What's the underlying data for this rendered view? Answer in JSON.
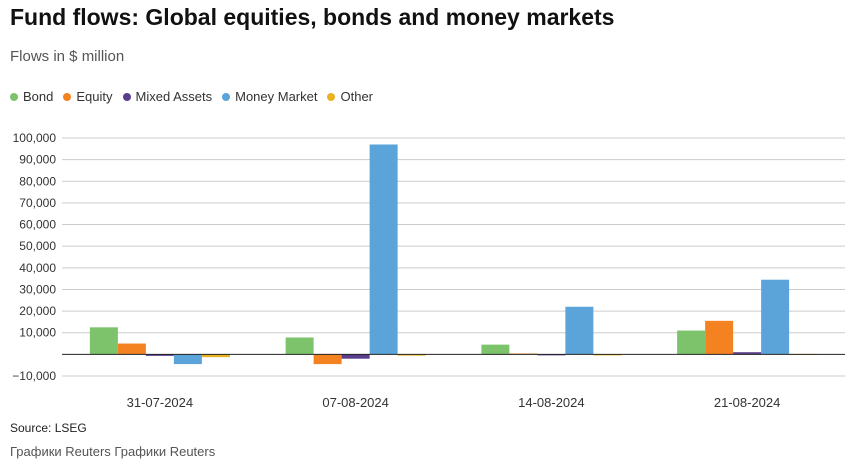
{
  "header": {
    "title": "Fund flows: Global equities, bonds and money markets",
    "subtitle": "Flows in $ million"
  },
  "footer": {
    "source": "Source: LSEG",
    "credit": "Графики Reuters Графики Reuters"
  },
  "chart_data": {
    "type": "bar",
    "title": "Fund flows: Global equities, bonds and money markets",
    "subtitle": "Flows in $ million",
    "xlabel": "",
    "ylabel": "",
    "categories": [
      "31-07-2024",
      "07-08-2024",
      "14-08-2024",
      "21-08-2024"
    ],
    "series": [
      {
        "name": "Bond",
        "color": "#7cc36b",
        "values": [
          12500,
          7800,
          4500,
          11000
        ]
      },
      {
        "name": "Equity",
        "color": "#f58220",
        "values": [
          5000,
          -4500,
          400,
          15500
        ]
      },
      {
        "name": "Mixed Assets",
        "color": "#5a3e8e",
        "values": [
          -700,
          -2000,
          -300,
          1000
        ]
      },
      {
        "name": "Money Market",
        "color": "#5aa4da",
        "values": [
          -4500,
          97000,
          22000,
          34500
        ]
      },
      {
        "name": "Other",
        "color": "#e8b222",
        "values": [
          -1300,
          -600,
          -500,
          200
        ]
      }
    ],
    "ylim": [
      -10000,
      100000
    ],
    "yticks": [
      100000,
      90000,
      80000,
      70000,
      60000,
      50000,
      40000,
      30000,
      20000,
      10000,
      -10000
    ],
    "ytick_labels": [
      "100,000",
      "90,000",
      "80,000",
      "70,000",
      "60,000",
      "50,000",
      "40,000",
      "30,000",
      "20,000",
      "10,000",
      "−10,000"
    ],
    "grid": true,
    "legend_position": "top-left"
  }
}
